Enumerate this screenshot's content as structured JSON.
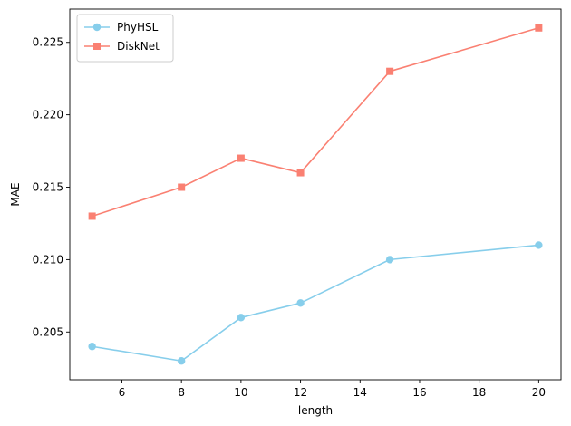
{
  "chart_data": {
    "type": "line",
    "title": "",
    "xlabel": "length",
    "ylabel": "MAE",
    "x": [
      5,
      8,
      10,
      12,
      15,
      20
    ],
    "xlim": [
      4.25,
      20.75
    ],
    "ylim": [
      0.2017,
      0.2273
    ],
    "xticks": [
      6,
      8,
      10,
      12,
      14,
      16,
      18,
      20
    ],
    "xtick_labels": [
      "6",
      "8",
      "10",
      "12",
      "14",
      "16",
      "18",
      "20"
    ],
    "yticks": [
      0.205,
      0.21,
      0.215,
      0.22,
      0.225
    ],
    "ytick_labels": [
      "0.205",
      "0.210",
      "0.215",
      "0.220",
      "0.225"
    ],
    "grid": false,
    "legend_position": "upper-left",
    "series": [
      {
        "name": "PhyHSL",
        "color": "#87CEEB",
        "marker": "circle",
        "values": [
          0.204,
          0.203,
          0.206,
          0.207,
          0.21,
          0.211
        ]
      },
      {
        "name": "DiskNet",
        "color": "#FA8072",
        "marker": "square",
        "values": [
          0.213,
          0.215,
          0.217,
          0.216,
          0.223,
          0.226
        ]
      }
    ]
  }
}
